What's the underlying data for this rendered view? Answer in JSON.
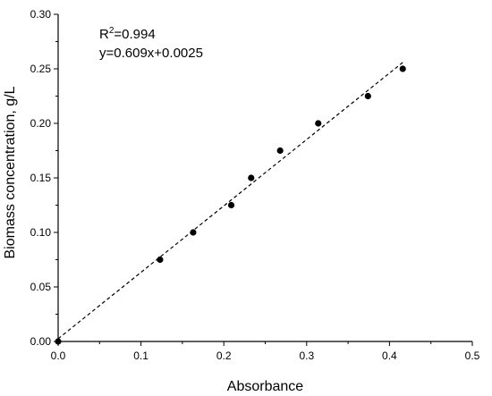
{
  "chart_data": {
    "type": "scatter",
    "title": "",
    "xlabel": "Absorbance",
    "ylabel": "Biomass concentration, g/L",
    "xlim": [
      0,
      0.5
    ],
    "ylim": [
      0,
      0.3
    ],
    "x_ticks": [
      "0.0",
      "0.1",
      "0.2",
      "0.3",
      "0.4",
      "0.5"
    ],
    "y_ticks": [
      "0.00",
      "0.05",
      "0.10",
      "0.15",
      "0.20",
      "0.25",
      "0.30"
    ],
    "grid": false,
    "series": [
      {
        "x": [
          0.0,
          0.123,
          0.163,
          0.209,
          0.233,
          0.268,
          0.314,
          0.374,
          0.416
        ],
        "y": [
          0.0,
          0.075,
          0.1,
          0.125,
          0.15,
          0.175,
          0.2,
          0.225,
          0.25
        ]
      }
    ],
    "fit": {
      "slope": 0.609,
      "intercept": 0.0025,
      "x_range": [
        0.0,
        0.416
      ]
    },
    "annotations": {
      "r2_prefix": "R",
      "r2_sup": "2",
      "r2_value": "=0.994",
      "equation": "y=0.609x+0.0025"
    }
  }
}
